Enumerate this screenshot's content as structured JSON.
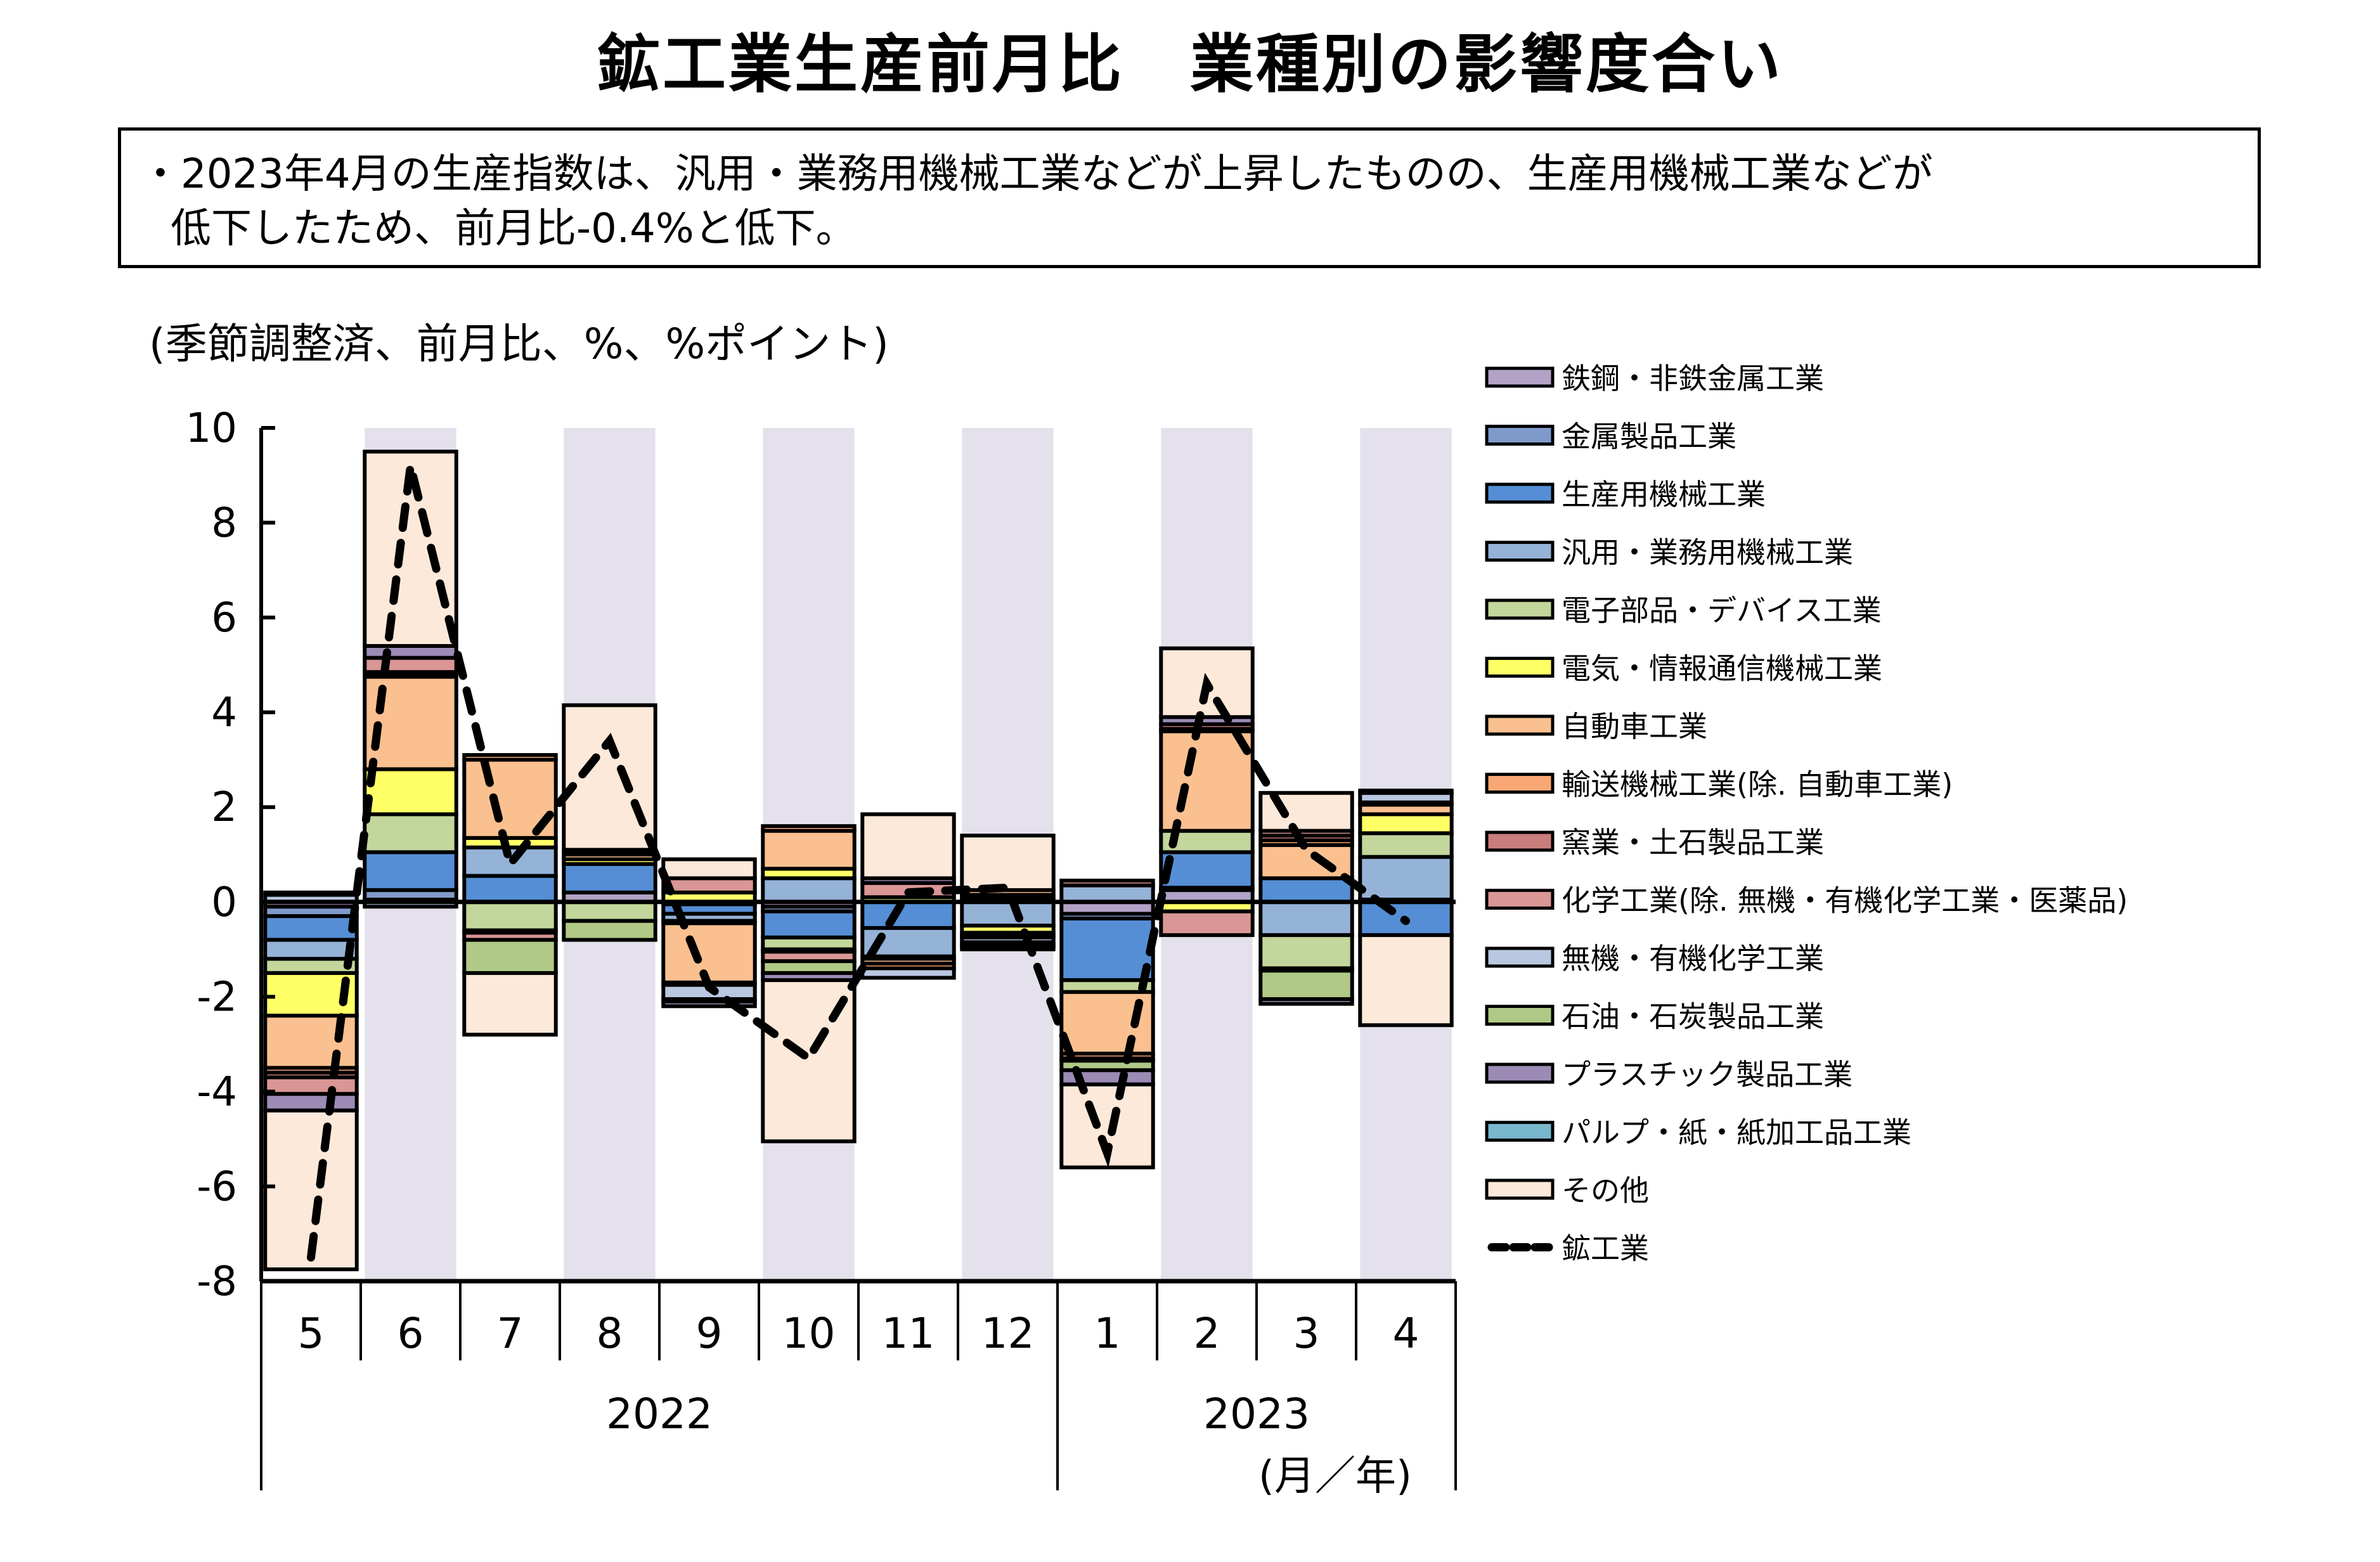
{
  "page": {
    "title": "鉱工業生産前月比　業種別の影響度合い",
    "summary_line1": "・2023年4月の生産指数は、汎用・業務用機械工業などが上昇したものの、生産用機械工業などが",
    "summary_line2": "低下したため、前月比-0.4%と低下。"
  },
  "chart_data": {
    "type": "bar",
    "stacked": true,
    "title": "鉱工業生産前月比　業種別の影響度合い",
    "unit_label": "(季節調整済、前月比、%、%ポイント)",
    "xlabel": "(月／年)",
    "ylabel": "",
    "ylim": [
      -8,
      10
    ],
    "yticks": [
      10,
      8,
      6,
      4,
      2,
      0,
      -2,
      -4,
      -6,
      -8
    ],
    "grid": false,
    "legend_position": "right",
    "categories": [
      "5",
      "6",
      "7",
      "8",
      "9",
      "10",
      "11",
      "12",
      "1",
      "2",
      "3",
      "4"
    ],
    "year_groups": [
      {
        "label": "2022",
        "months": 8
      },
      {
        "label": "2023",
        "months": 4
      }
    ],
    "shaded_months": [
      1,
      3,
      5,
      7,
      9,
      11
    ],
    "shade_color": "#E4E1EC",
    "series": [
      {
        "name": "鉄鋼・非鉄金属工業",
        "color": "#B3A2C7",
        "values": [
          -0.1,
          0.05,
          0.0,
          0.2,
          -0.05,
          -0.1,
          0.0,
          0.05,
          -0.25,
          0.25,
          0.0,
          0.05
        ]
      },
      {
        "name": "金属製品工業",
        "color": "#7F9ACA",
        "values": [
          -0.2,
          0.2,
          0.0,
          0.0,
          0.0,
          -0.1,
          0.0,
          0.05,
          -0.1,
          0.05,
          0.0,
          0.0
        ]
      },
      {
        "name": "生産用機械工業",
        "color": "#558ED5",
        "values": [
          -0.5,
          0.8,
          0.55,
          0.6,
          -0.2,
          -0.55,
          -0.55,
          0.05,
          -1.3,
          0.75,
          0.5,
          -0.7
        ]
      },
      {
        "name": "汎用・業務用機械工業",
        "color": "#95B3D7",
        "values": [
          -0.4,
          0.0,
          0.6,
          0.0,
          -0.15,
          0.5,
          -0.6,
          -0.5,
          0.35,
          0.0,
          -0.7,
          0.9
        ]
      },
      {
        "name": "電子部品・デバイス工業",
        "color": "#C3D69B",
        "values": [
          -0.3,
          0.8,
          -0.6,
          -0.4,
          -0.05,
          -0.25,
          -0.05,
          0.0,
          -0.25,
          0.45,
          -0.7,
          0.5
        ]
      },
      {
        "name": "電気・情報通信機械工業",
        "color": "#FFFF66",
        "values": [
          -0.9,
          0.95,
          0.2,
          0.1,
          0.2,
          0.2,
          0.1,
          -0.15,
          0.0,
          -0.2,
          0.0,
          0.4
        ]
      },
      {
        "name": "自動車工業",
        "color": "#FAC090",
        "values": [
          -1.1,
          1.95,
          1.65,
          0.1,
          -1.25,
          0.8,
          -0.1,
          0.1,
          -1.3,
          2.1,
          0.7,
          0.2
        ]
      },
      {
        "name": "輸送機械工業(除. 自動車工業)",
        "color": "#F9A875",
        "values": [
          -0.1,
          0.05,
          0.1,
          0.05,
          -0.05,
          0.1,
          -0.1,
          -0.05,
          -0.1,
          0.05,
          0.1,
          0.05
        ]
      },
      {
        "name": "窯業・土石製品工業",
        "color": "#C97D7D",
        "values": [
          -0.1,
          0.05,
          -0.05,
          0.05,
          0.0,
          -0.05,
          0.0,
          0.0,
          -0.05,
          0.1,
          0.1,
          0.0
        ]
      },
      {
        "name": "化学工業(除. 無機・有機化学工業・医薬品)",
        "color": "#D99694",
        "values": [
          -0.35,
          0.3,
          -0.15,
          0.0,
          0.3,
          -0.2,
          0.3,
          -0.05,
          0.1,
          -0.5,
          0.1,
          0.0
        ]
      },
      {
        "name": "無機・有機化学工業",
        "color": "#B9C7E0",
        "values": [
          0.15,
          -0.1,
          0.0,
          0.0,
          -0.3,
          0.0,
          -0.2,
          -0.1,
          0.0,
          0.0,
          -0.05,
          0.2
        ]
      },
      {
        "name": "石油・石炭製品工業",
        "color": "#B0C986",
        "values": [
          0.05,
          0.0,
          -0.7,
          -0.4,
          -0.05,
          -0.25,
          0.0,
          -0.05,
          -0.2,
          0.0,
          -0.6,
          0.0
        ]
      },
      {
        "name": "プラスチック製品工業",
        "color": "#9B8BB5",
        "values": [
          -0.35,
          0.25,
          0.0,
          0.0,
          -0.1,
          -0.15,
          0.1,
          -0.05,
          -0.3,
          0.15,
          -0.1,
          0.0
        ]
      },
      {
        "name": "パルプ・紙・紙加工品工業",
        "color": "#78B7CC",
        "values": [
          0.0,
          0.0,
          0.0,
          0.0,
          0.0,
          0.0,
          0.0,
          -0.05,
          0.0,
          0.0,
          0.0,
          0.05
        ]
      },
      {
        "name": "その他",
        "color": "#FDE9D9",
        "values": [
          -3.35,
          4.1,
          -1.3,
          3.05,
          0.4,
          -3.4,
          1.35,
          1.15,
          -1.75,
          1.45,
          0.8,
          -1.9
        ]
      }
    ],
    "line_series": {
      "name": "鉱工業",
      "color": "#000000",
      "style": "dashed",
      "values": [
        -7.5,
        9.2,
        0.8,
        3.4,
        -1.8,
        -3.3,
        0.2,
        0.3,
        -5.3,
        4.6,
        1.1,
        -0.4
      ]
    }
  }
}
